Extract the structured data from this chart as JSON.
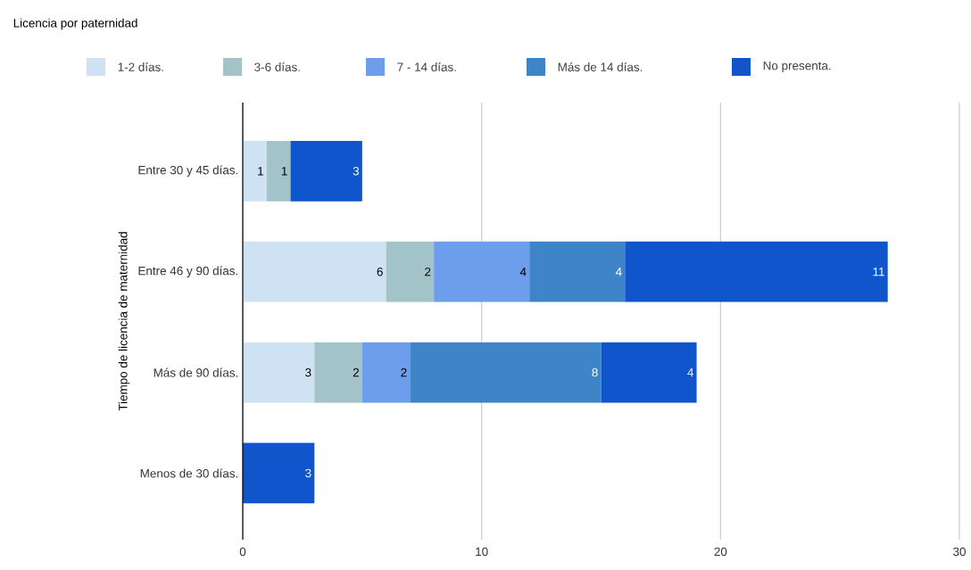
{
  "chart_data": {
    "type": "bar",
    "orientation": "horizontal",
    "stacked": true,
    "title": "Licencia por paternidad",
    "ylabel": "Tiempo de licencia de maternidad",
    "categories": [
      "Entre 30 y 45 días.",
      "Entre 46 y 90 días.",
      "Más de 90 días.",
      "Menos de 30 días."
    ],
    "series": [
      {
        "name": "1-2 días.",
        "color": "#cfe2f3",
        "values": [
          1,
          6,
          3,
          null
        ]
      },
      {
        "name": "3-6 días.",
        "color": "#a2c4c9",
        "values": [
          1,
          2,
          2,
          null
        ]
      },
      {
        "name": "7 - 14 días.",
        "color": "#6d9eeb",
        "values": [
          null,
          4,
          2,
          null
        ]
      },
      {
        "name": "Más de 14 días.",
        "color": "#3d85c6",
        "values": [
          null,
          4,
          8,
          null
        ]
      },
      {
        "name": "No presenta.",
        "color": "#1155cc",
        "values": [
          3,
          11,
          4,
          3
        ]
      }
    ],
    "xlim": [
      0,
      30
    ],
    "xticks": [
      0,
      10,
      20,
      30
    ],
    "grid": "x",
    "legend": "top",
    "data_labels": true
  }
}
